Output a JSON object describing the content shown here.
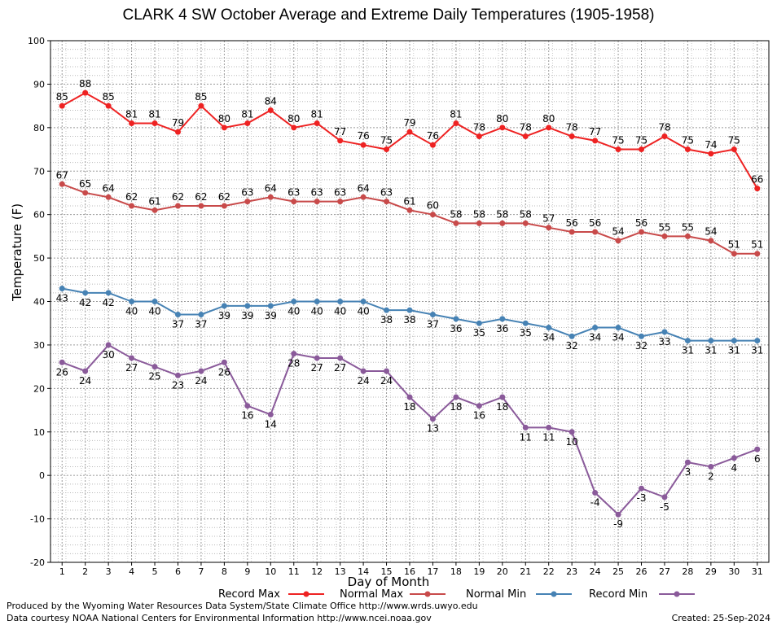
{
  "chart_data": {
    "type": "line",
    "title": "CLARK 4 SW October Average and Extreme Daily Temperatures (1905-1958)",
    "xlabel": "Day of Month",
    "ylabel": "Temperature (F)",
    "x": [
      1,
      2,
      3,
      4,
      5,
      6,
      7,
      8,
      9,
      10,
      11,
      12,
      13,
      14,
      15,
      16,
      17,
      18,
      19,
      20,
      21,
      22,
      23,
      24,
      25,
      26,
      27,
      28,
      29,
      30,
      31
    ],
    "xlim": [
      0.5,
      31.5
    ],
    "ylim": [
      -20,
      100
    ],
    "yticks": [
      -20,
      -10,
      0,
      10,
      20,
      30,
      40,
      50,
      60,
      70,
      80,
      90,
      100
    ],
    "grid": true,
    "legend_position": "bottom",
    "series": [
      {
        "name": "Record Max",
        "color": "#ee2222",
        "values": [
          85,
          88,
          85,
          81,
          81,
          79,
          85,
          80,
          81,
          84,
          80,
          81,
          77,
          76,
          75,
          79,
          76,
          81,
          78,
          80,
          78,
          80,
          78,
          77,
          75,
          75,
          78,
          75,
          74,
          75,
          66
        ]
      },
      {
        "name": "Normal Max",
        "color": "#c84a4a",
        "values": [
          67,
          65,
          64,
          62,
          61,
          62,
          62,
          62,
          63,
          64,
          63,
          63,
          63,
          64,
          63,
          61,
          60,
          58,
          58,
          58,
          58,
          57,
          56,
          56,
          54,
          56,
          55,
          55,
          54,
          51,
          51
        ]
      },
      {
        "name": "Normal Min",
        "color": "#4682b4",
        "values": [
          43,
          42,
          42,
          40,
          40,
          37,
          37,
          39,
          39,
          39,
          40,
          40,
          40,
          40,
          38,
          38,
          37,
          36,
          35,
          36,
          35,
          34,
          32,
          34,
          34,
          32,
          33,
          31,
          31,
          31,
          31
        ]
      },
      {
        "name": "Record Min",
        "color": "#8a5a9a",
        "values": [
          26,
          24,
          30,
          27,
          25,
          23,
          24,
          26,
          16,
          14,
          28,
          27,
          27,
          24,
          24,
          18,
          13,
          18,
          16,
          18,
          11,
          11,
          10,
          -4,
          -9,
          -3,
          -5,
          3,
          2,
          4,
          6
        ]
      }
    ]
  },
  "footer": {
    "line1": "Produced by the Wyoming Water Resources Data System/State Climate Office http://www.wrds.uwyo.edu",
    "line2": "Data courtesy NOAA National Centers for Environmental Information http://www.ncei.noaa.gov",
    "created": "Created:  25-Sep-2024"
  }
}
